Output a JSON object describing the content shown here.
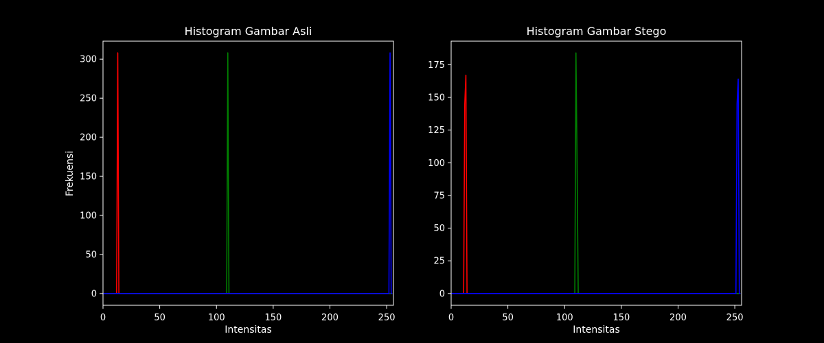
{
  "figure": {
    "background": "#000000",
    "foreground": "#ffffff"
  },
  "chart_data": [
    {
      "type": "line",
      "title": "Histogram Gambar Asli",
      "xlabel": "Intensitas",
      "ylabel": "Frekuensi",
      "xlim": [
        0,
        256
      ],
      "ylim": [
        -15,
        323
      ],
      "xticks": [
        0,
        50,
        100,
        150,
        200,
        250
      ],
      "yticks": [
        0,
        50,
        100,
        150,
        200,
        250,
        300
      ],
      "grid": false,
      "series": [
        {
          "color": "#ff0000",
          "x": [
            0,
            12,
            13,
            14,
            255
          ],
          "y": [
            0,
            0,
            308,
            0,
            0
          ]
        },
        {
          "color": "#008000",
          "x": [
            0,
            109,
            110,
            111,
            255
          ],
          "y": [
            0,
            0,
            308,
            0,
            0
          ]
        },
        {
          "color": "#0000ff",
          "x": [
            0,
            252,
            253,
            254,
            255
          ],
          "y": [
            0,
            0,
            308,
            0,
            0
          ]
        }
      ]
    },
    {
      "type": "line",
      "title": "Histogram Gambar Stego",
      "xlabel": "Intensitas",
      "ylabel": "",
      "xlim": [
        0,
        256
      ],
      "ylim": [
        -9,
        193
      ],
      "xticks": [
        0,
        50,
        100,
        150,
        200,
        250
      ],
      "yticks": [
        0,
        25,
        50,
        75,
        100,
        125,
        150,
        175
      ],
      "grid": false,
      "series": [
        {
          "color": "#ff0000",
          "x": [
            0,
            10,
            11,
            12,
            13,
            14,
            255
          ],
          "y": [
            0,
            0,
            0,
            145,
            167,
            0,
            0
          ]
        },
        {
          "color": "#008000",
          "x": [
            0,
            109,
            110,
            111,
            112,
            255
          ],
          "y": [
            0,
            0,
            184,
            100,
            0,
            0
          ]
        },
        {
          "color": "#0000ff",
          "x": [
            0,
            250,
            251,
            252,
            253,
            254,
            255
          ],
          "y": [
            0,
            0,
            0,
            145,
            164,
            0,
            0
          ]
        }
      ]
    }
  ]
}
